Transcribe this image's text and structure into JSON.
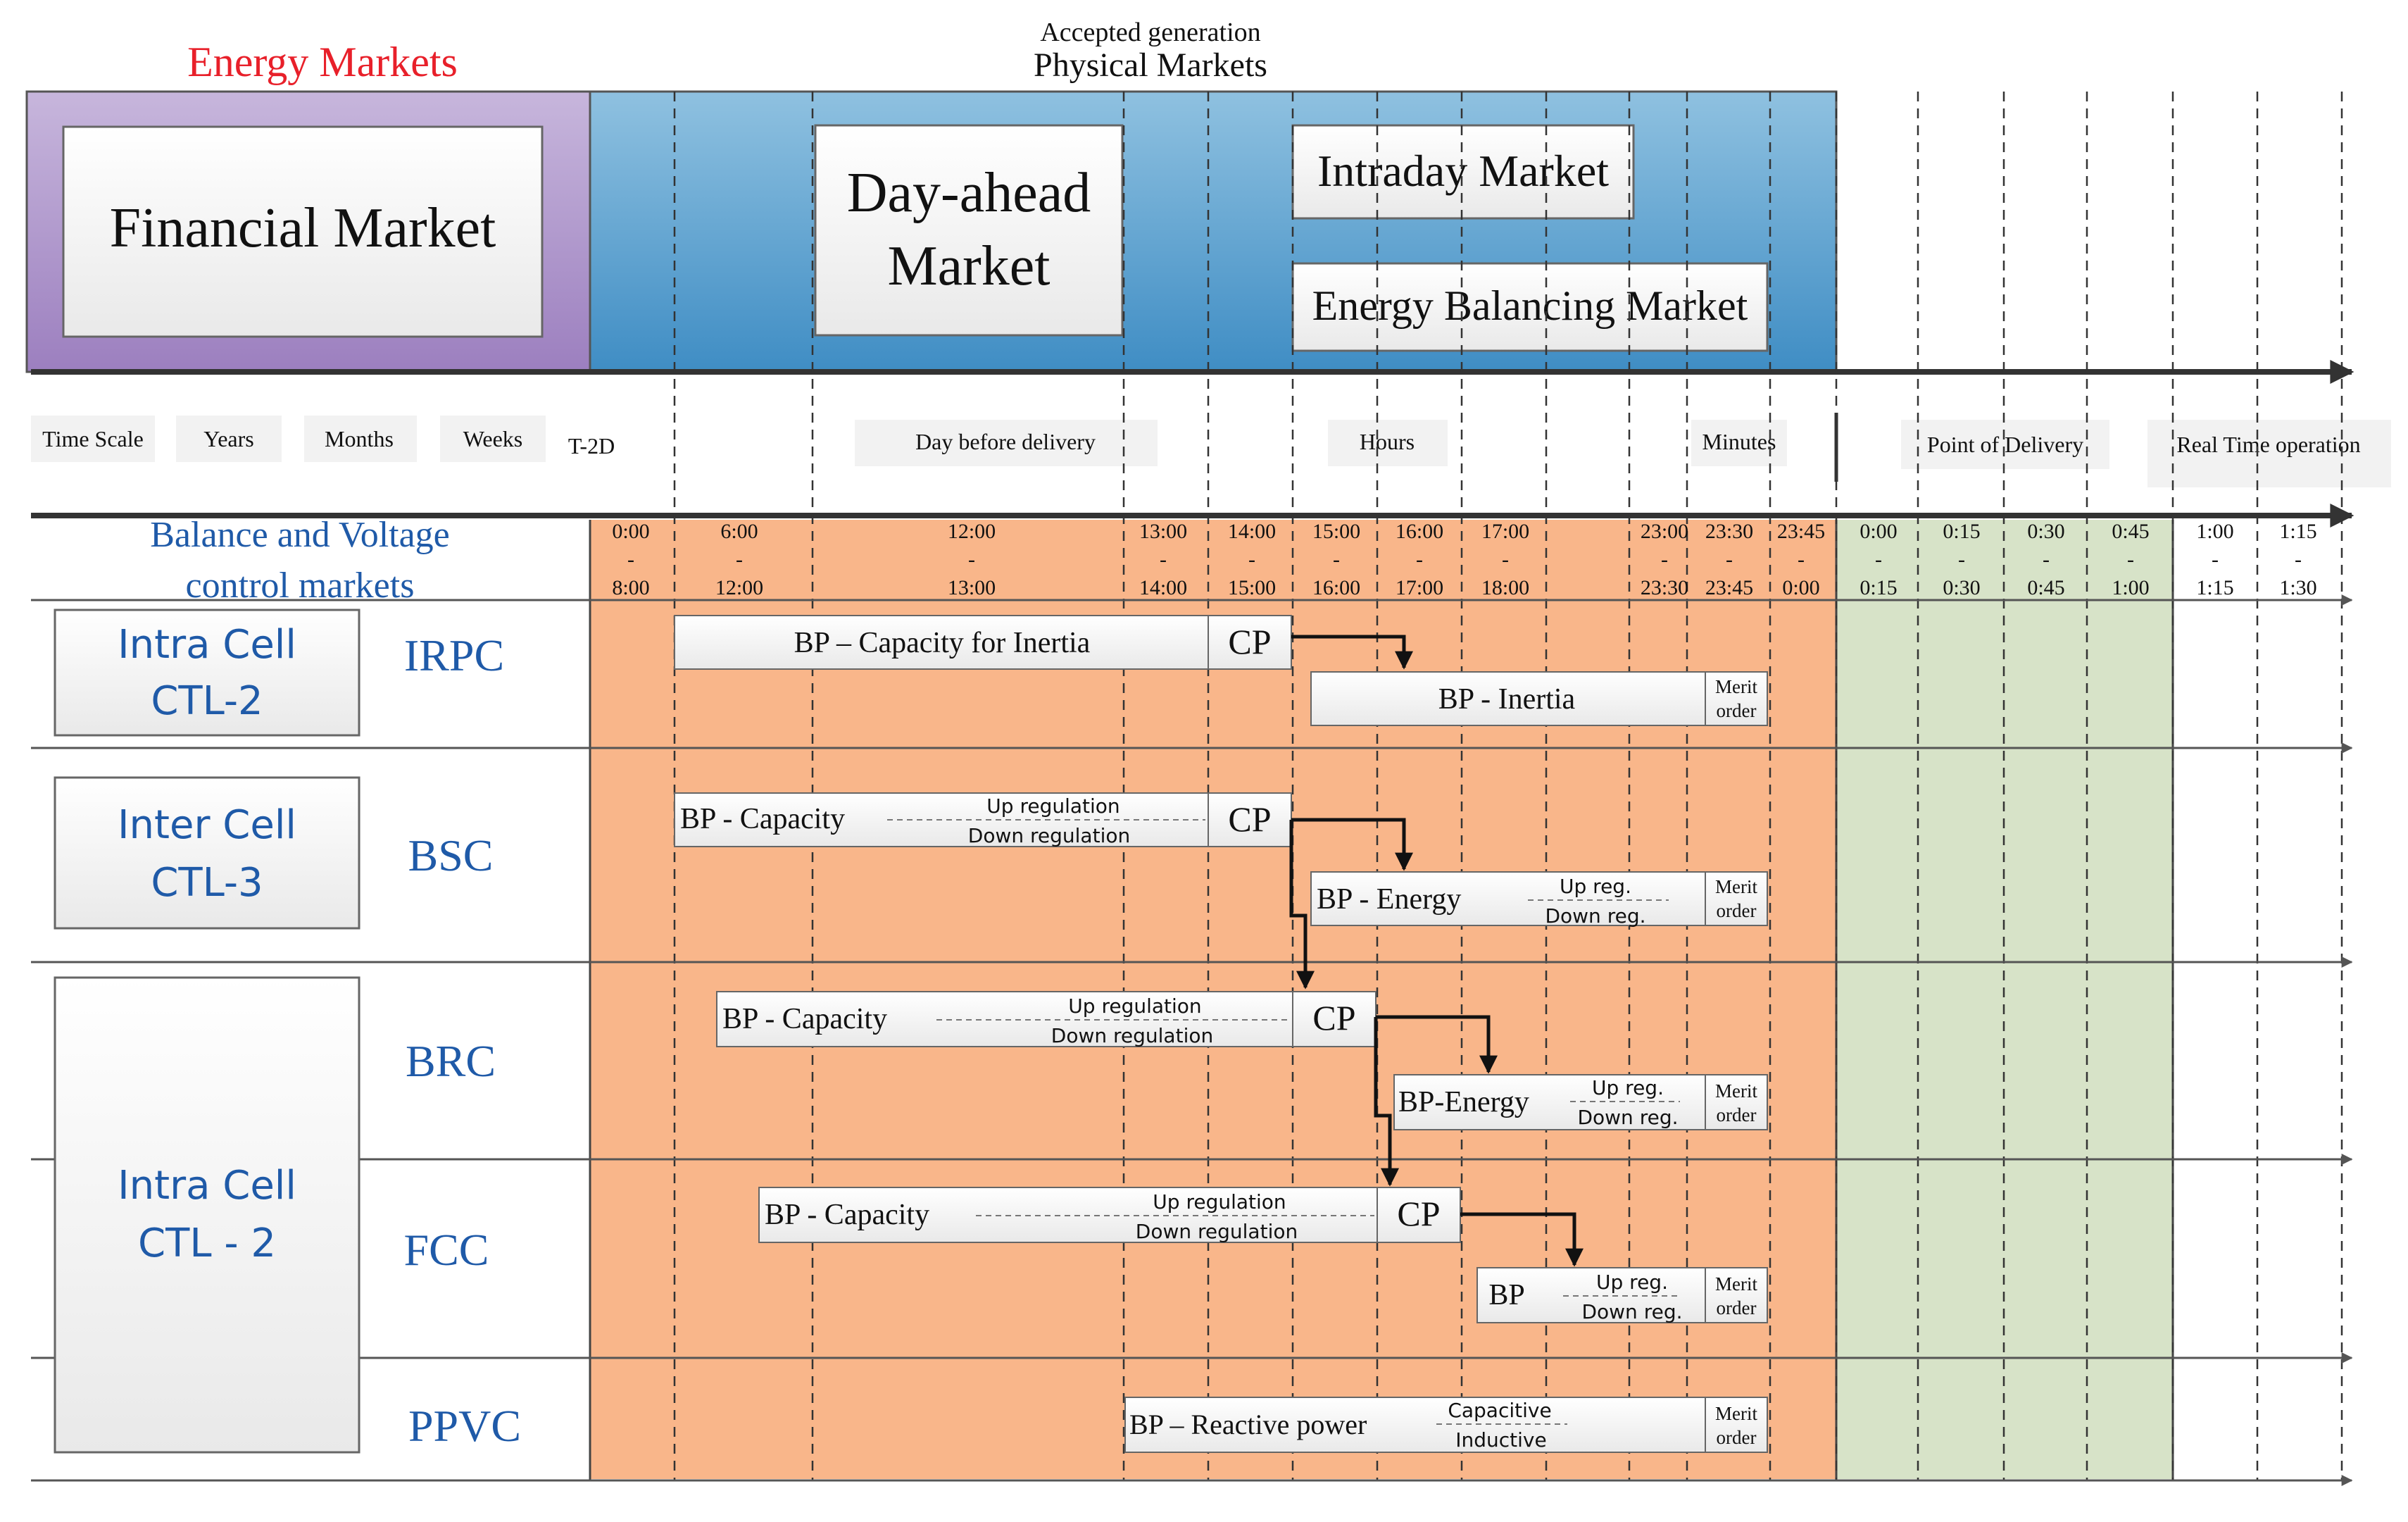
{
  "header": {
    "energy_markets": "Energy Markets",
    "accepted_generation": "Accepted generation",
    "physical_markets": "Physical Markets",
    "financial_market": "Financial Market",
    "day_ahead_line1": "Day-ahead",
    "day_ahead_line2": "Market",
    "intraday_market": "Intraday Market",
    "energy_balancing_market": "Energy Balancing Market"
  },
  "timescale": {
    "time_scale": "Time Scale",
    "years": "Years",
    "months": "Months",
    "weeks": "Weeks",
    "t2d": "T-2D",
    "day_before_delivery": "Day before delivery",
    "hours": "Hours",
    "minutes": "Minutes",
    "point_of_delivery": "Point of Delivery",
    "real_time_operation": "Real Time operation"
  },
  "balance": {
    "line1": "Balance and Voltage",
    "line2": "control markets"
  },
  "time_columns": [
    {
      "start": "0:00",
      "end": "8:00"
    },
    {
      "start": "6:00",
      "end": "12:00"
    },
    {
      "start": "12:00",
      "end": "13:00"
    },
    {
      "start": "13:00",
      "end": "14:00"
    },
    {
      "start": "14:00",
      "end": "15:00"
    },
    {
      "start": "15:00",
      "end": "16:00"
    },
    {
      "start": "16:00",
      "end": "17:00"
    },
    {
      "start": "17:00",
      "end": "18:00"
    },
    {
      "start": "23:00",
      "end": "23:30"
    },
    {
      "start": "23:30",
      "end": "23:45"
    },
    {
      "start": "23:45",
      "end": "0:00"
    },
    {
      "start": "0:00",
      "end": "0:15"
    },
    {
      "start": "0:15",
      "end": "0:30"
    },
    {
      "start": "0:30",
      "end": "0:45"
    },
    {
      "start": "0:45",
      "end": "1:00"
    },
    {
      "start": "1:00",
      "end": "1:15"
    },
    {
      "start": "1:15",
      "end": "1:30"
    }
  ],
  "dash": "-",
  "cells": {
    "intra_cell": "Intra Cell",
    "inter_cell": "Inter Cell",
    "ctl2": "CTL-2",
    "ctl3": "CTL-3",
    "ctl2_spaced": "CTL - 2"
  },
  "rows": {
    "irpc": "IRPC",
    "bsc": "BSC",
    "brc": "BRC",
    "fcc": "FCC",
    "ppvc": "PPVC"
  },
  "labels": {
    "bp_capacity_inertia": "BP – Capacity for Inertia",
    "bp_inertia": "BP - Inertia",
    "bp_capacity": "BP - Capacity",
    "bp_energy": "BP - Energy",
    "bp_energy_nospace": "BP-Energy",
    "bp": "BP",
    "bp_reactive": "BP – Reactive power",
    "cp": "CP",
    "up_regulation": "Up regulation",
    "down_regulation": "Down regulation",
    "up_reg": "Up reg.",
    "down_reg": "Down reg.",
    "merit": "Merit",
    "order": "order",
    "capacitive": "Capacitive",
    "inductive": "Inductive"
  },
  "colors": {
    "financial": "#b8a3cf",
    "physical": "#5fa5cf",
    "orange": "#f9b68a",
    "green": "#d7e3c8",
    "red_title": "#e8202a",
    "blue_text": "#1f5aa8",
    "box_fill": "#f3f3f3"
  }
}
